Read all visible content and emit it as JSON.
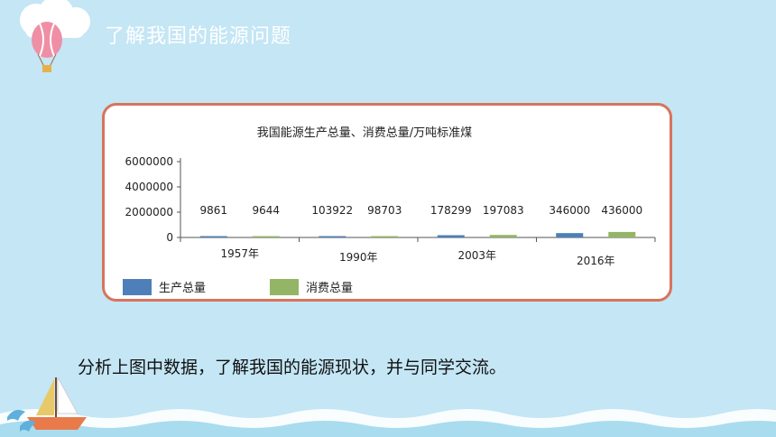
{
  "slide": {
    "title": "了解我国的能源问题",
    "body_text": "分析上图中数据，了解我国的能源现状，并与同学交流。"
  },
  "colors": {
    "background": "#c4e6f5",
    "card_border": "#d9735c",
    "production": "#4f7fb8",
    "consumption": "#93b565"
  },
  "icons": [
    "cloud-icon",
    "hot-air-balloon-icon",
    "sailboat-icon",
    "dolphin-icon",
    "wave-icon"
  ],
  "chart_data": {
    "type": "bar",
    "title": "我国能源生产总量、消费总量/万吨标准煤",
    "categories": [
      "1957年",
      "1990年",
      "2003年",
      "2016年"
    ],
    "series": [
      {
        "name": "生产总量",
        "values": [
          9861,
          103922,
          178299,
          346000
        ],
        "color": "#4f7fb8"
      },
      {
        "name": "消费总量",
        "values": [
          9644,
          98703,
          197083,
          436000
        ],
        "color": "#93b565"
      }
    ],
    "yticks": [
      "6000000",
      "4000000",
      "2000000",
      "0"
    ],
    "ylim": [
      0,
      6000000
    ],
    "legend_position": "bottom-left",
    "grid": false
  }
}
